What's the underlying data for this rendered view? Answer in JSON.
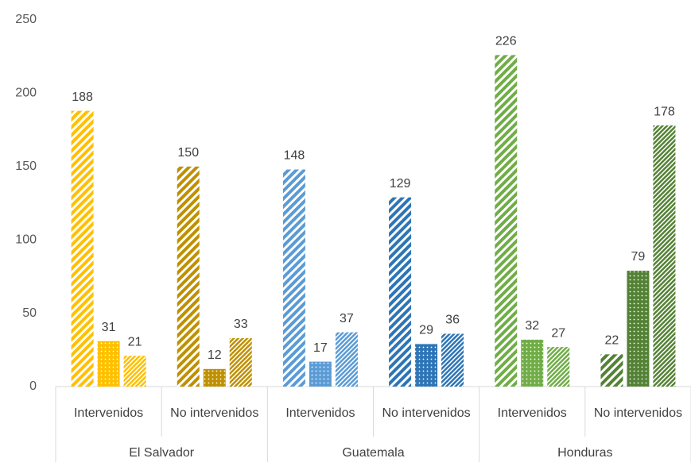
{
  "chart_data": {
    "type": "bar",
    "ylim": [
      0,
      250
    ],
    "yticks": [
      0,
      50,
      100,
      150,
      200,
      250
    ],
    "patterns": [
      "wide-stripes",
      "dots",
      "narrow-stripes"
    ],
    "groups": [
      {
        "label": "El Salvador",
        "subgroups": [
          {
            "label": "Intervenidos",
            "color": "#FFC000",
            "values": [
              188,
              31,
              21
            ]
          },
          {
            "label": "No intervenidos",
            "color": "#BF9000",
            "values": [
              150,
              12,
              33
            ]
          }
        ]
      },
      {
        "label": "Guatemala",
        "subgroups": [
          {
            "label": "Intervenidos",
            "color": "#5B9BD5",
            "values": [
              148,
              17,
              37
            ]
          },
          {
            "label": "No intervenidos",
            "color": "#2E75B6",
            "values": [
              129,
              29,
              36
            ]
          }
        ]
      },
      {
        "label": "Honduras",
        "subgroups": [
          {
            "label": "Intervenidos",
            "color": "#70AD47",
            "values": [
              226,
              32,
              27
            ]
          },
          {
            "label": "No intervenidos",
            "color": "#548235",
            "values": [
              22,
              79,
              178
            ]
          }
        ]
      }
    ]
  }
}
